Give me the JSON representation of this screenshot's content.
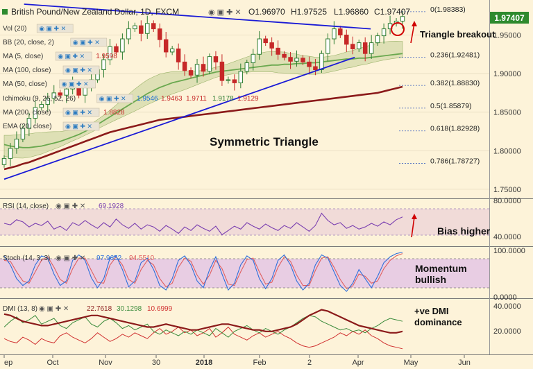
{
  "header": {
    "instrument": "British Pound/New Zealand Dollar, 1D, FXCM",
    "ohlc": {
      "open": "O1.96970",
      "high": "H1.97525",
      "low": "L1.96860",
      "close": "C1.97407"
    },
    "current_price": "1.97407"
  },
  "colors": {
    "background": "#fdf3d9",
    "price_up": "#2e7d32",
    "price_down": "#c62828",
    "trendline": "#1a1ad6",
    "ma200": "#8b1a1a",
    "ma100": "#6aa84f",
    "cloud": "#b7c98a",
    "rsi": "#7a3fb0",
    "stoch_k": "#2f6fdb",
    "stoch_d": "#e06060",
    "dmi_plus": "#3a8a3a",
    "dmi_minus": "#d03030",
    "adx": "#8b1a1a",
    "annotation": "#d00000"
  },
  "indicator_legends": [
    {
      "label": "Vol (20)",
      "value": ""
    },
    {
      "label": "BB (20, close, 2)",
      "value": ""
    },
    {
      "label": "MA (5, close)",
      "value": "1.9598"
    },
    {
      "label": "MA (100, close)",
      "value": ""
    },
    {
      "label": "MA (50, close)",
      "value": ""
    },
    {
      "label": "Ichimoku (9, 26, 52, 26)",
      "value": ""
    },
    {
      "label": "MA (200, close)",
      "value": "1.8828"
    },
    {
      "label": "EMA (20, close)",
      "value": ""
    }
  ],
  "ichimoku_values": [
    "1.9546",
    "1.9463",
    "1.9711",
    "1.9178",
    "1.9129"
  ],
  "fibonacci": [
    {
      "label": "0(1.98383)",
      "value": 1.98383
    },
    {
      "label": "0.236(1.92481)",
      "value": 1.92481
    },
    {
      "label": "0.382(1.88830)",
      "value": 1.8883
    },
    {
      "label": "0.5(1.85879)",
      "value": 1.85879
    },
    {
      "label": "0.618(1.82928)",
      "value": 1.82928
    },
    {
      "label": "0.786(1.78727)",
      "value": 1.78727
    }
  ],
  "annotations": {
    "pattern": "Symmetric Triangle",
    "breakout": "Triangle breakout",
    "rsi_note": "Bias higher",
    "stoch_note": "Momentum bullish",
    "dmi_note": "+ve DMI dominance"
  },
  "oscillator_legends": {
    "rsi": {
      "label": "RSI (14, close)",
      "value": "69.1928"
    },
    "stoch": {
      "label": "Stoch (14, 3, 3)",
      "values": [
        "97.9652",
        "94.5510"
      ]
    },
    "dmi": {
      "label": "DMI (13, 8)",
      "values": [
        "22.7618",
        "30.1298",
        "10.6999"
      ]
    }
  },
  "chart_data": [
    {
      "type": "candlestick",
      "title": "British Pound/New Zealand Dollar, 1D, FXCM",
      "x_ticks": [
        "ep",
        "Oct",
        "Nov",
        "30",
        "2018",
        "Feb",
        "2",
        "Apr",
        "May",
        "Jun"
      ],
      "y_ticks": [
        "1.95000",
        "1.90000",
        "1.85000",
        "1.80000",
        "1.75000"
      ],
      "ylim": [
        1.74,
        1.99
      ],
      "last": 1.97407,
      "series": [
        {
          "name": "price",
          "values": [
            1.79,
            1.803,
            1.815,
            1.829,
            1.842,
            1.856,
            1.86,
            1.868,
            1.875,
            1.872,
            1.88,
            1.886,
            1.872,
            1.884,
            1.892,
            1.905,
            1.918,
            1.935,
            1.928,
            1.945,
            1.958,
            1.962,
            1.952,
            1.965,
            1.958,
            1.944,
            1.928,
            1.932,
            1.915,
            1.904,
            1.898,
            1.912,
            1.903,
            1.922,
            1.915,
            1.891,
            1.892,
            1.888,
            1.903,
            1.914,
            1.925,
            1.945,
            1.94,
            1.933,
            1.925,
            1.921,
            1.916,
            1.92,
            1.915,
            1.909,
            1.905,
            1.926,
            1.945,
            1.958,
            1.95,
            1.938,
            1.932,
            1.94,
            1.926,
            1.94,
            1.949,
            1.958,
            1.965,
            1.968,
            1.974
          ]
        },
        {
          "name": "MA (200, close)",
          "values": [
            1.776,
            1.778,
            1.78,
            1.783,
            1.785,
            1.788,
            1.791,
            1.794,
            1.797,
            1.8,
            1.803,
            1.806,
            1.809,
            1.812,
            1.815,
            1.818,
            1.821,
            1.824,
            1.826,
            1.828,
            1.83,
            1.832,
            1.834,
            1.836,
            1.838,
            1.84,
            1.841,
            1.842,
            1.843,
            1.844,
            1.845,
            1.846,
            1.847,
            1.848,
            1.849,
            1.85,
            1.851,
            1.852,
            1.853,
            1.854,
            1.855,
            1.856,
            1.857,
            1.858,
            1.859,
            1.86,
            1.861,
            1.862,
            1.863,
            1.864,
            1.865,
            1.866,
            1.867,
            1.868,
            1.869,
            1.87,
            1.871,
            1.872,
            1.873,
            1.874,
            1.875,
            1.877,
            1.879,
            1.881,
            1.883
          ]
        },
        {
          "name": "MA (100, close)",
          "values": [
            1.808,
            1.806,
            1.805,
            1.804,
            1.804,
            1.805,
            1.806,
            1.808,
            1.81,
            1.812,
            1.815,
            1.818,
            1.821,
            1.825,
            1.829,
            1.834,
            1.839,
            1.844,
            1.849,
            1.854,
            1.859,
            1.864,
            1.869,
            1.874,
            1.878,
            1.882,
            1.885,
            1.888,
            1.89,
            1.892,
            1.894,
            1.896,
            1.898,
            1.9,
            1.902,
            1.903,
            1.904,
            1.905,
            1.906,
            1.907,
            1.908,
            1.909,
            1.91,
            1.911,
            1.911,
            1.912,
            1.912,
            1.913,
            1.913,
            1.914,
            1.914,
            1.915,
            1.916,
            1.917,
            1.918,
            1.919,
            1.919,
            1.92,
            1.92,
            1.921,
            1.922,
            1.923,
            1.924,
            1.925,
            1.926
          ]
        }
      ],
      "trendlines": [
        {
          "name": "upper",
          "from": [
            0.05,
            1.99
          ],
          "to": [
            0.92,
            1.958
          ]
        },
        {
          "name": "lower",
          "from": [
            0.0,
            1.763
          ],
          "to": [
            0.88,
            1.921
          ]
        }
      ]
    },
    {
      "type": "line",
      "title": "RSI (14, close)",
      "y_ticks": [
        "80.0000",
        "40.0000"
      ],
      "ylim": [
        30,
        90
      ],
      "series": [
        {
          "name": "RSI",
          "values": [
            60,
            58,
            65,
            62,
            55,
            60,
            57,
            63,
            52,
            56,
            50,
            61,
            57,
            64,
            58,
            53,
            61,
            55,
            66,
            58,
            53,
            60,
            52,
            58,
            55,
            49,
            57,
            52,
            46,
            55,
            50,
            58,
            53,
            49,
            56,
            44,
            50,
            56,
            52,
            61,
            56,
            52,
            59,
            54,
            50,
            57,
            53,
            61,
            55,
            49,
            57,
            74,
            64,
            58,
            61,
            53,
            57,
            52,
            55,
            60,
            56,
            62,
            58,
            65,
            69
          ]
        }
      ]
    },
    {
      "type": "line",
      "title": "Stoch (14, 3, 3)",
      "y_ticks": [
        "100.0000",
        "0.0000"
      ],
      "ylim": [
        0,
        105
      ],
      "series": [
        {
          "name": "%K",
          "values": [
            90,
            70,
            40,
            25,
            35,
            70,
            90,
            85,
            50,
            25,
            35,
            80,
            92,
            80,
            42,
            20,
            40,
            85,
            90,
            60,
            22,
            35,
            75,
            85,
            60,
            25,
            15,
            40,
            80,
            90,
            70,
            35,
            20,
            60,
            88,
            50,
            15,
            30,
            70,
            90,
            80,
            40,
            18,
            40,
            80,
            92,
            70,
            35,
            15,
            30,
            70,
            92,
            85,
            55,
            25,
            12,
            30,
            60,
            40,
            20,
            45,
            75,
            88,
            95,
            98
          ]
        },
        {
          "name": "%D",
          "values": [
            80,
            78,
            55,
            35,
            30,
            55,
            80,
            88,
            65,
            38,
            30,
            62,
            85,
            85,
            58,
            32,
            30,
            70,
            88,
            70,
            38,
            30,
            60,
            80,
            70,
            40,
            22,
            30,
            65,
            85,
            78,
            48,
            28,
            48,
            80,
            62,
            28,
            25,
            55,
            82,
            85,
            55,
            28,
            32,
            65,
            88,
            78,
            48,
            25,
            25,
            58,
            85,
            88,
            65,
            38,
            18,
            24,
            50,
            45,
            30,
            35,
            62,
            80,
            90,
            95
          ]
        }
      ]
    },
    {
      "type": "line",
      "title": "DMI (13, 8)",
      "y_ticks": [
        "40.0000",
        "20.0000"
      ],
      "ylim": [
        8,
        44
      ],
      "series": [
        {
          "name": "ADX",
          "values": [
            35,
            34,
            32,
            30,
            29,
            28,
            27,
            27,
            28,
            29,
            30,
            31,
            32,
            33,
            34,
            34,
            33,
            32,
            31,
            30,
            29,
            28,
            27,
            26,
            26,
            27,
            28,
            27,
            26,
            25,
            24,
            24,
            25,
            26,
            27,
            28,
            28,
            27,
            26,
            25,
            24,
            24,
            23,
            23,
            24,
            25,
            26,
            28,
            31,
            34,
            36,
            38,
            37,
            35,
            33,
            31,
            29,
            27,
            26,
            25,
            24,
            23,
            22,
            22,
            23
          ]
        },
        {
          "name": "+DI",
          "values": [
            26,
            30,
            33,
            29,
            31,
            34,
            28,
            30,
            32,
            27,
            25,
            29,
            31,
            33,
            28,
            26,
            30,
            32,
            29,
            25,
            27,
            24,
            26,
            28,
            23,
            21,
            24,
            22,
            20,
            23,
            21,
            24,
            22,
            20,
            25,
            22,
            19,
            23,
            25,
            27,
            24,
            22,
            25,
            23,
            21,
            24,
            26,
            29,
            32,
            34,
            33,
            30,
            28,
            26,
            24,
            25,
            23,
            24,
            22,
            25,
            27,
            30,
            32,
            31,
            30
          ]
        },
        {
          "name": "-DI",
          "values": [
            18,
            16,
            15,
            19,
            17,
            14,
            18,
            16,
            15,
            20,
            22,
            19,
            17,
            15,
            18,
            22,
            19,
            16,
            18,
            21,
            19,
            22,
            20,
            18,
            22,
            25,
            21,
            23,
            26,
            22,
            24,
            20,
            22,
            25,
            19,
            22,
            26,
            21,
            19,
            17,
            20,
            22,
            19,
            21,
            23,
            20,
            18,
            15,
            13,
            12,
            13,
            15,
            17,
            19,
            22,
            20,
            23,
            21,
            24,
            20,
            18,
            15,
            13,
            12,
            11
          ]
        }
      ]
    }
  ]
}
